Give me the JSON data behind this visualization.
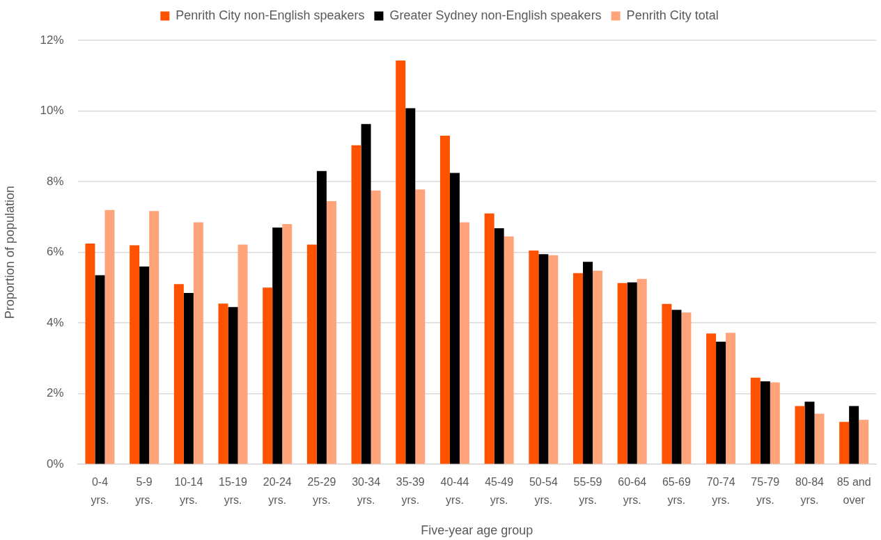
{
  "chart_data": {
    "type": "bar",
    "xlabel": "Five-year age group",
    "ylabel": "Proportion of population",
    "categories": [
      "0-4 yrs.",
      "5-9 yrs.",
      "10-14 yrs.",
      "15-19 yrs.",
      "20-24 yrs.",
      "25-29 yrs.",
      "30-34 yrs.",
      "35-39 yrs.",
      "40-44 yrs.",
      "45-49 yrs.",
      "50-54 yrs.",
      "55-59 yrs.",
      "60-64 yrs.",
      "65-69 yrs.",
      "70-74 yrs.",
      "75-79 yrs.",
      "80-84 yrs.",
      "85 and over"
    ],
    "series": [
      {
        "name": "Penrith City non-English speakers",
        "color": "#ff5200",
        "values": [
          6.25,
          6.2,
          5.1,
          4.55,
          5.0,
          6.22,
          9.03,
          11.43,
          9.3,
          7.1,
          6.05,
          5.41,
          5.13,
          4.54,
          3.7,
          2.45,
          1.65,
          1.2
        ]
      },
      {
        "name": "Greater Sydney non-English speakers",
        "color": "#000000",
        "values": [
          5.35,
          5.6,
          4.85,
          4.45,
          6.7,
          8.3,
          9.63,
          10.08,
          8.25,
          6.68,
          5.95,
          5.73,
          5.15,
          4.37,
          3.47,
          2.35,
          1.77,
          1.65
        ]
      },
      {
        "name": "Penrith City total",
        "color": "#ffa47a",
        "values": [
          7.2,
          7.17,
          6.85,
          6.22,
          6.8,
          7.45,
          7.75,
          7.78,
          6.85,
          6.45,
          5.92,
          5.48,
          5.25,
          4.3,
          3.72,
          2.32,
          1.43,
          1.26
        ]
      }
    ],
    "ylim": [
      0,
      12
    ],
    "yticks": [
      {
        "value": 0,
        "label": "0%"
      },
      {
        "value": 2,
        "label": "2%"
      },
      {
        "value": 4,
        "label": "4%"
      },
      {
        "value": 6,
        "label": "6%"
      },
      {
        "value": 8,
        "label": "8%"
      },
      {
        "value": 10,
        "label": "10%"
      },
      {
        "value": 12,
        "label": "12%"
      }
    ],
    "grid": "y",
    "legend": "top"
  }
}
